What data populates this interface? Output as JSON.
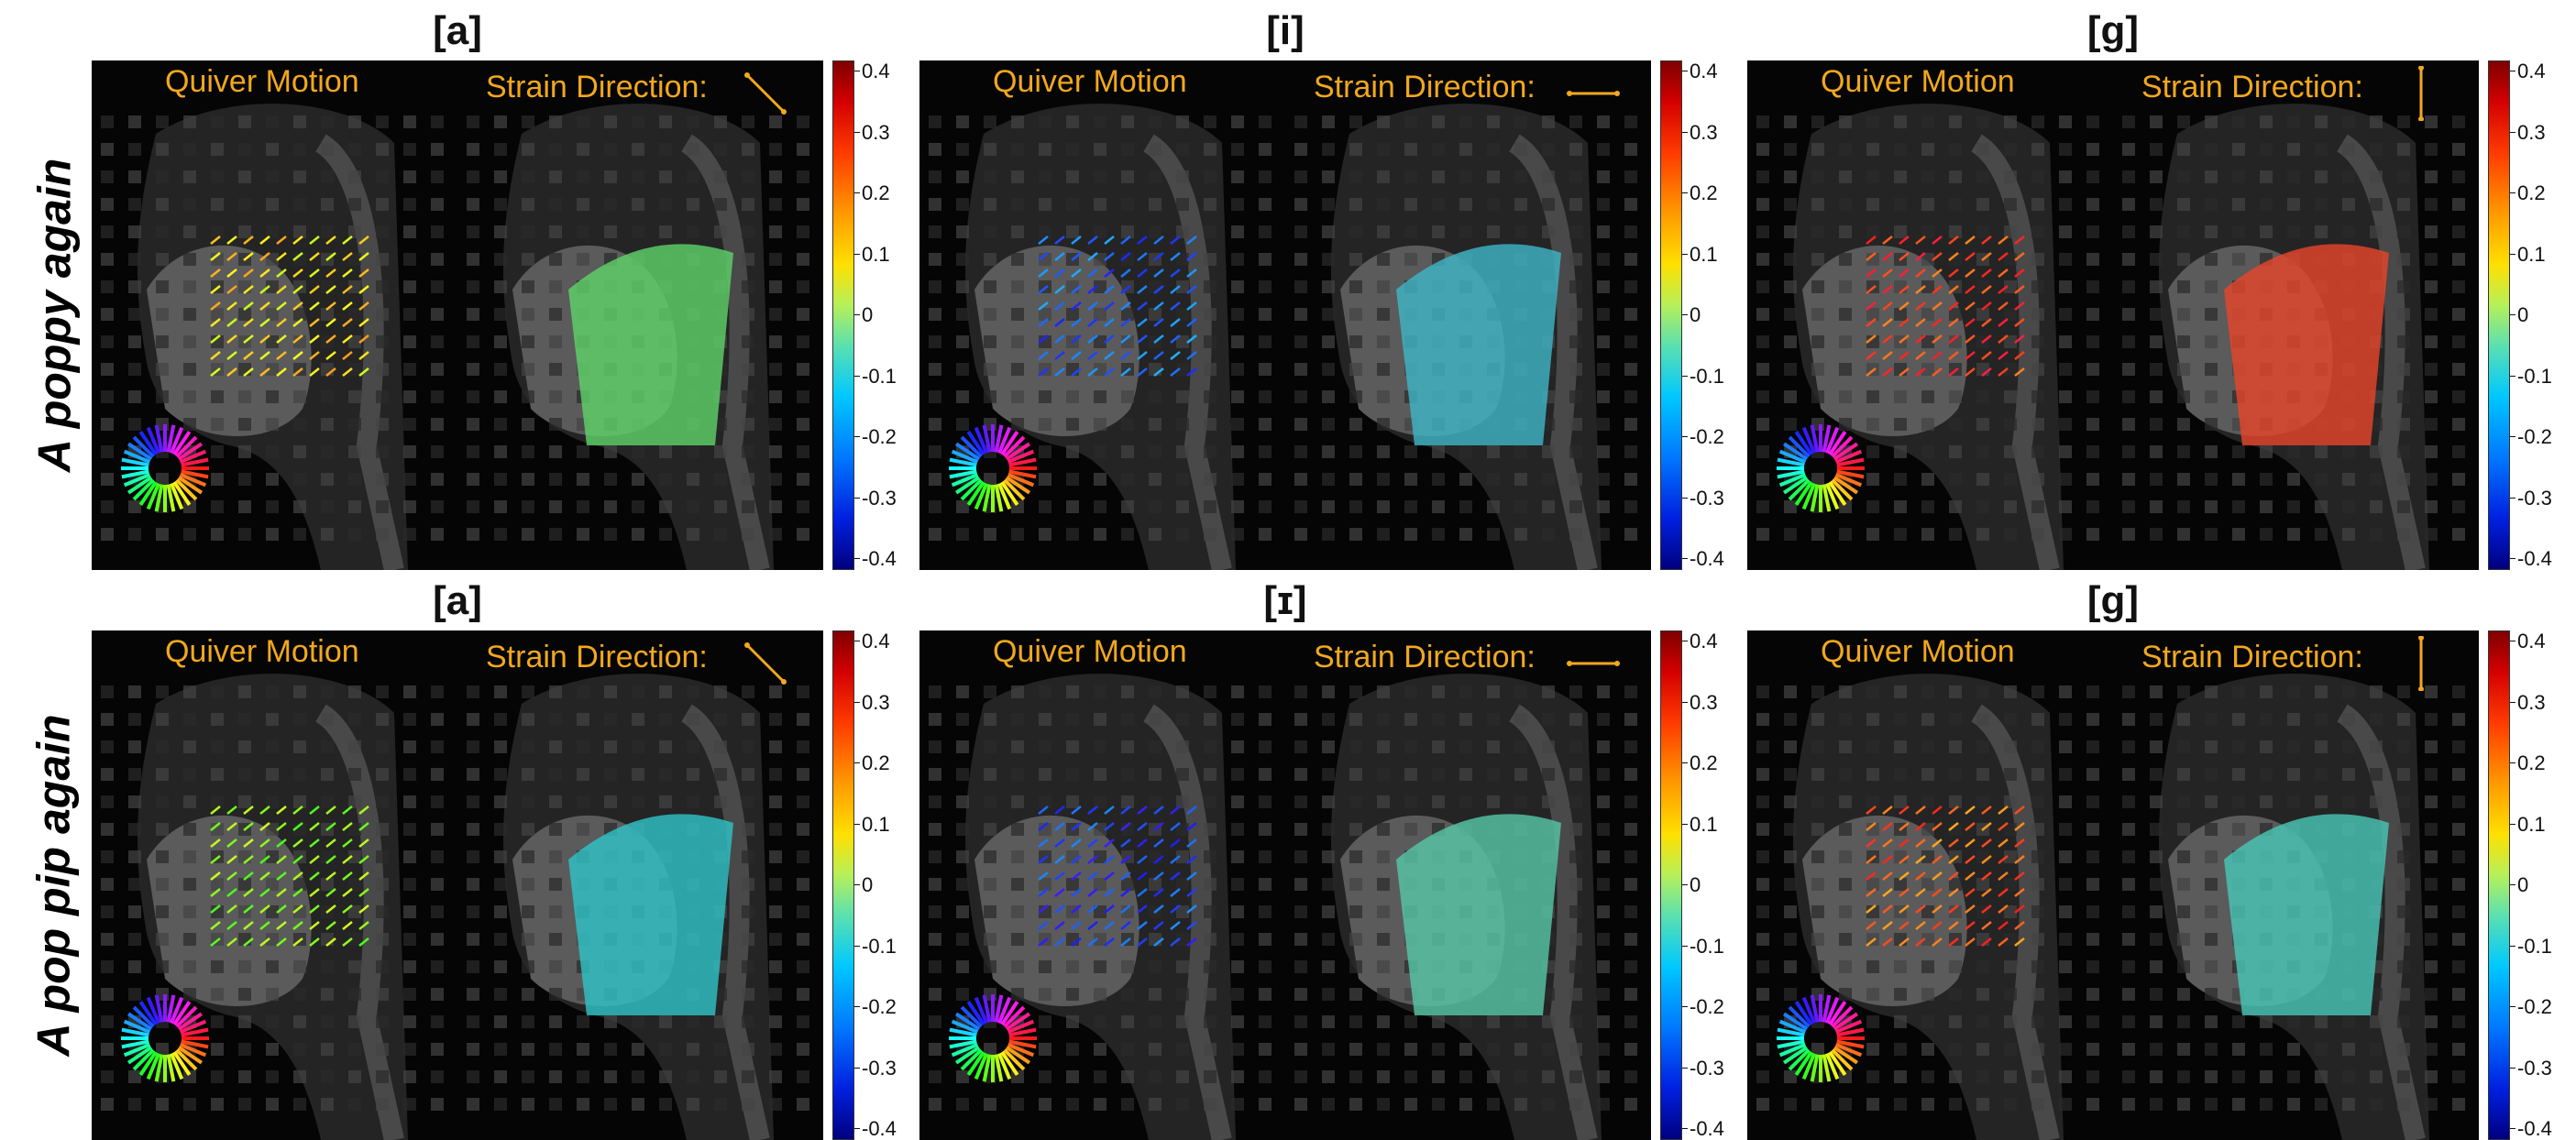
{
  "rows": [
    {
      "label": "A poppy again"
    },
    {
      "label": "A pop pip again"
    }
  ],
  "panels": [
    {
      "title": "[a]",
      "quiver": "Quiver Motion",
      "strain": "Strain Direction:",
      "direction_icon": "diagonal-arrow-icon",
      "strain_color": "#5fd46a"
    },
    {
      "title": "[i]",
      "quiver": "Quiver Motion",
      "strain": "Strain Direction:",
      "direction_icon": "horizontal-arrow-icon",
      "strain_color": "#3fb6c8"
    },
    {
      "title": "[g]",
      "quiver": "Quiver Motion",
      "strain": "Strain Direction:",
      "direction_icon": "vertical-arrow-icon",
      "strain_color": "#e8452a"
    },
    {
      "title": "[a]",
      "quiver": "Quiver Motion",
      "strain": "Strain Direction:",
      "direction_icon": "diagonal-arrow-icon",
      "strain_color": "#2fc4c8"
    },
    {
      "title": "[ɪ]",
      "quiver": "Quiver Motion",
      "strain": "Strain Direction:",
      "direction_icon": "horizontal-arrow-icon",
      "strain_color": "#56c8a8"
    },
    {
      "title": "[g]",
      "quiver": "Quiver Motion",
      "strain": "Strain Direction:",
      "direction_icon": "vertical-arrow-icon",
      "strain_color": "#48c8b8"
    }
  ],
  "colorbar": {
    "ticks": [
      "0.4",
      "0.3",
      "0.2",
      "0.1",
      "0",
      "-0.1",
      "-0.2",
      "-0.3",
      "-0.4"
    ]
  },
  "colors": {
    "annotation": "#f2a81d",
    "background": "#050505"
  }
}
